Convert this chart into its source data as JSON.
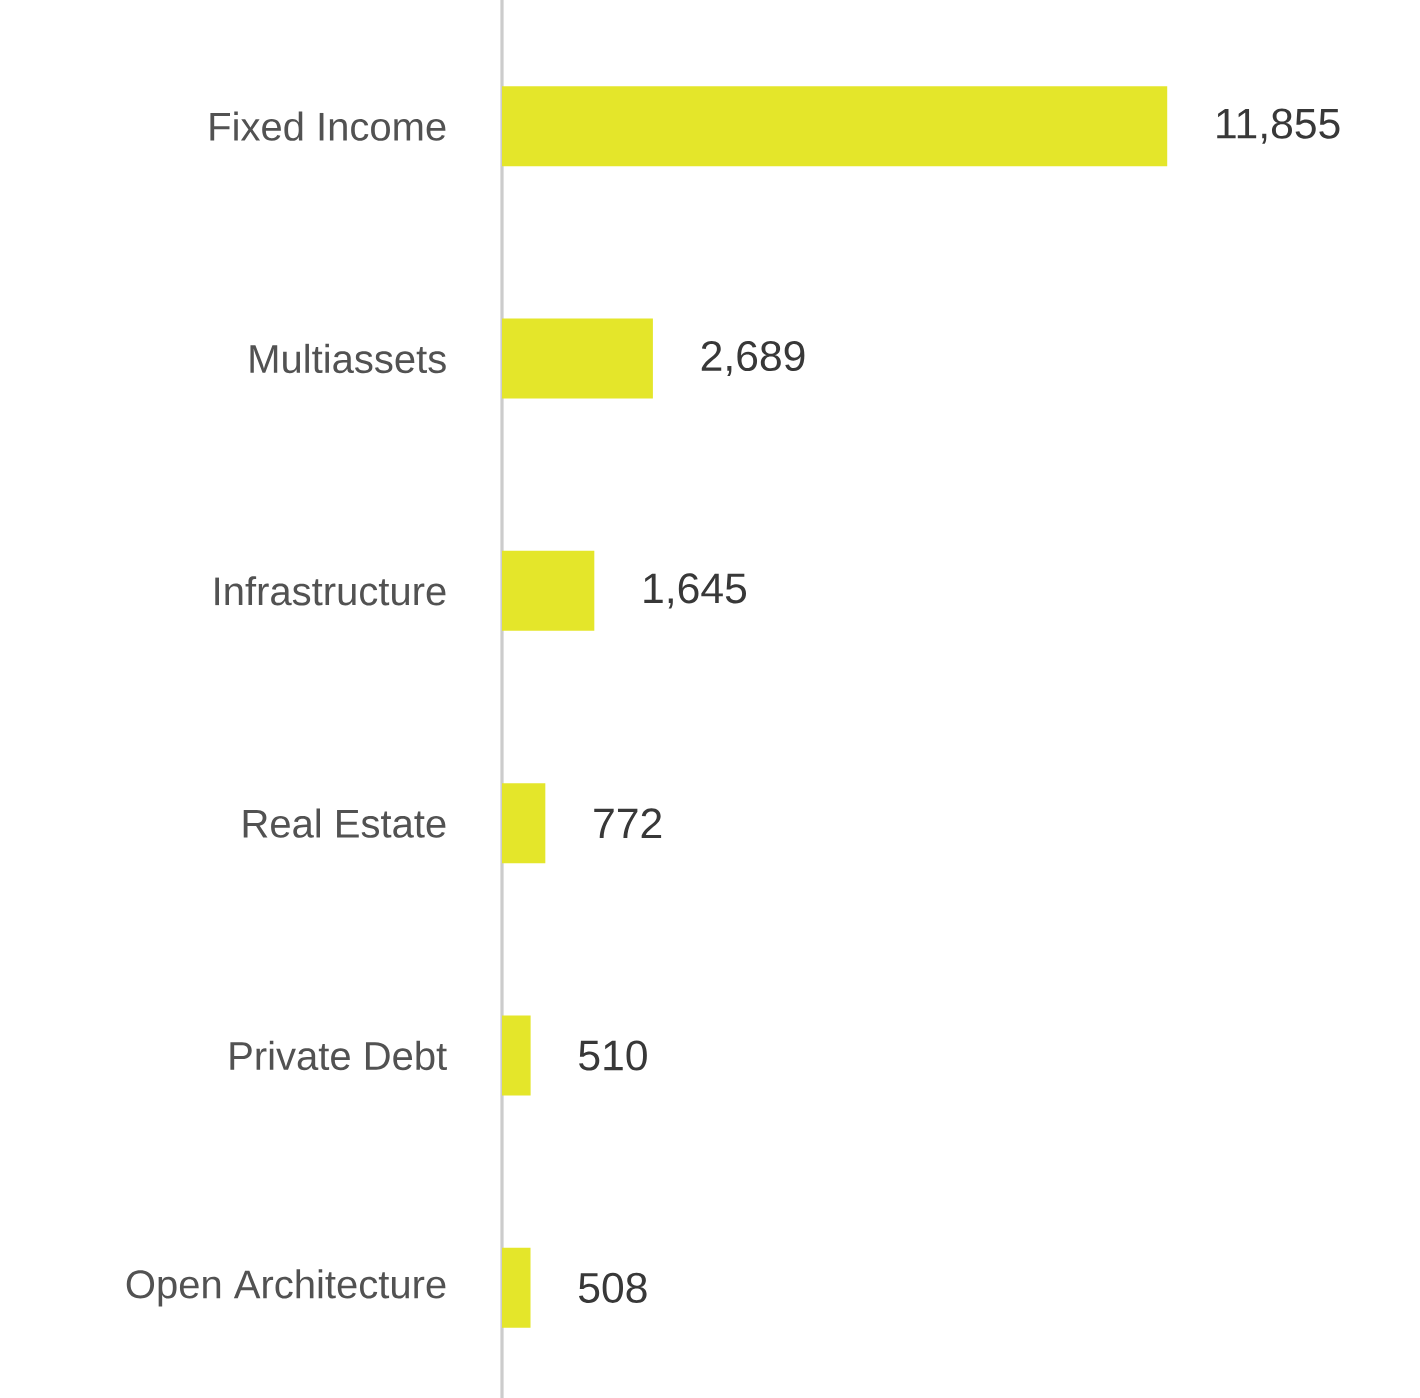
{
  "chart_data": {
    "type": "bar",
    "orientation": "horizontal",
    "categories": [
      "Fixed Income",
      "Multiassets",
      "Infrastructure",
      "Real Estate",
      "Private Debt",
      "Open Architecture"
    ],
    "values": [
      11855,
      2689,
      1645,
      772,
      510,
      508
    ],
    "value_labels": [
      "11,855",
      "2,689",
      "1,645",
      "772",
      "510",
      "508"
    ],
    "color": "#e4e62a"
  }
}
